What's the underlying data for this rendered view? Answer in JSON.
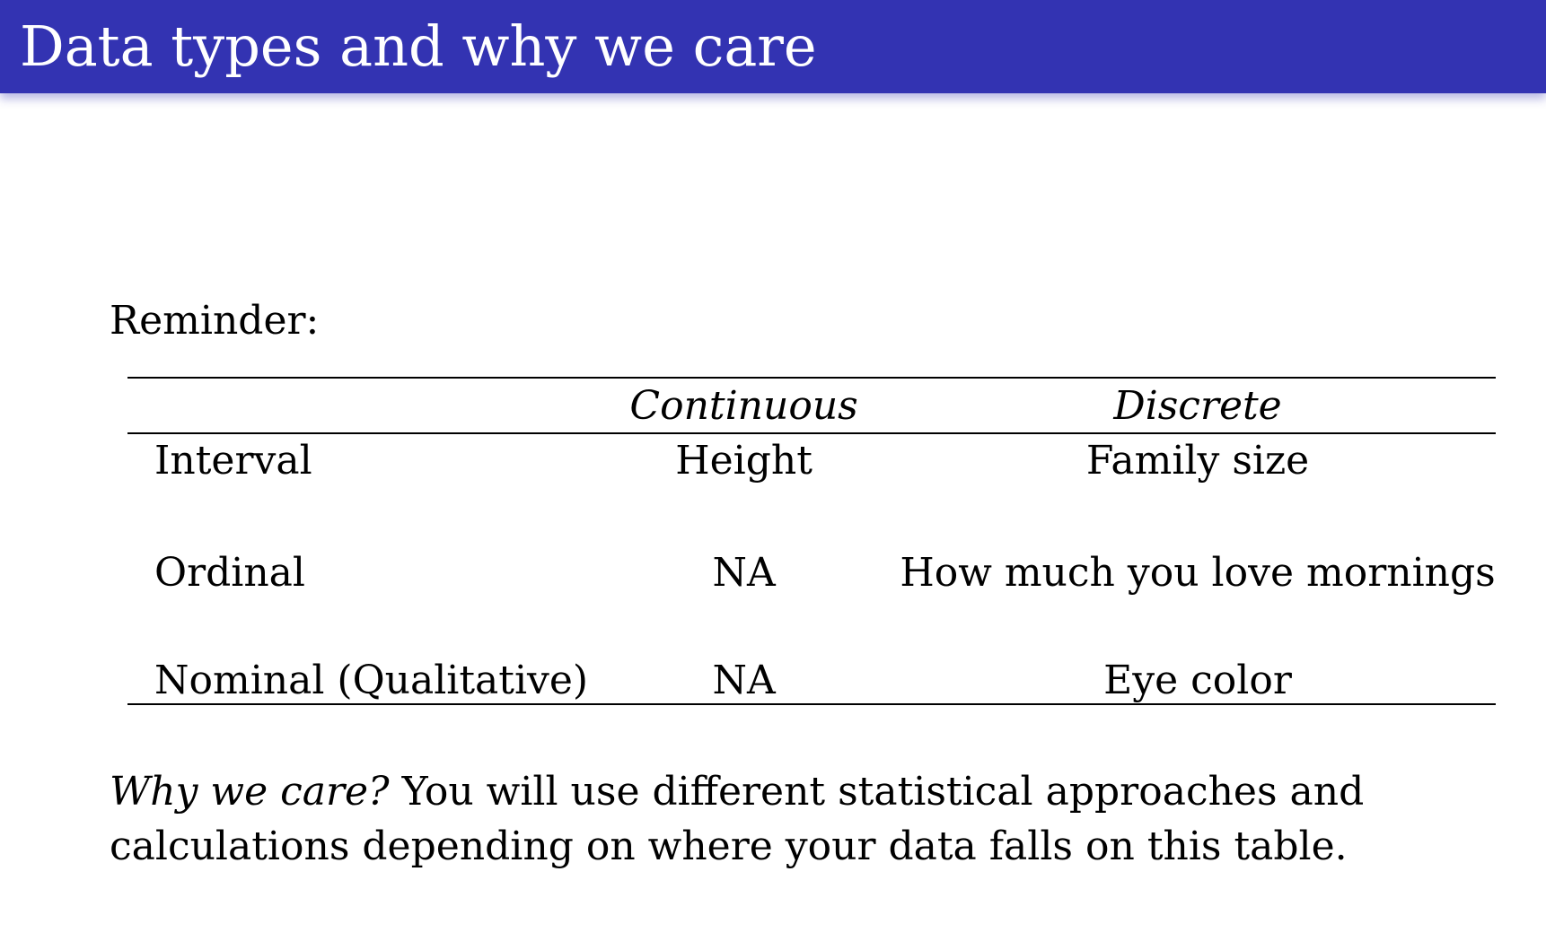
{
  "slide": {
    "title": "Data types and why we care",
    "reminder_label": "Reminder:",
    "table": {
      "columns": [
        "",
        "Continuous",
        "Discrete"
      ],
      "rows": [
        {
          "label": "Interval",
          "continuous": "Height",
          "discrete": "Family size"
        },
        {
          "label": "Ordinal",
          "continuous": "NA",
          "discrete": "How much you love mornings"
        },
        {
          "label": "Nominal (Qualitative)",
          "continuous": "NA",
          "discrete": "Eye color"
        }
      ]
    },
    "note": {
      "lead": "Why we care?",
      "text": "You will use different statistical approaches and calculations depending on where your data falls on this table."
    }
  },
  "colors": {
    "title_bar": "#3333b2",
    "title_text": "#ffffff",
    "body_text": "#000000"
  }
}
